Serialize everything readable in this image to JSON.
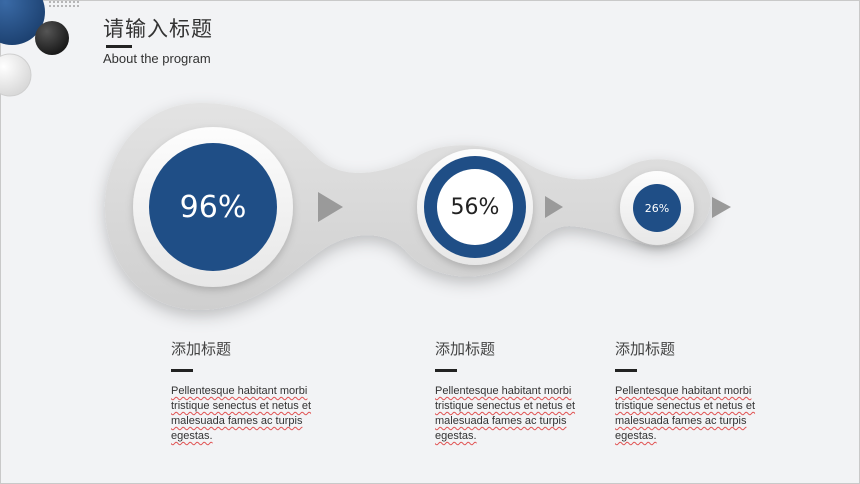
{
  "header": {
    "title": "请输入标题",
    "subtitle": "About the program"
  },
  "colors": {
    "accent": "#1f4e86",
    "dark": "#2b2b2b",
    "background": "#f2f3f5"
  },
  "stages": [
    {
      "percent": 96,
      "label": "96%"
    },
    {
      "percent": 56,
      "label": "56%"
    },
    {
      "percent": 26,
      "label": "26%"
    }
  ],
  "columns": [
    {
      "title": "添加标题",
      "text": "Pellentesque habitant morbi tristique senectus et netus et malesuada fames ac turpis egestas."
    },
    {
      "title": "添加标题",
      "text": "Pellentesque habitant morbi tristique senectus et netus et malesuada fames ac turpis egestas."
    },
    {
      "title": "添加标题",
      "text": "Pellentesque habitant morbi tristique senectus et netus et malesuada fames ac turpis egestas."
    }
  ]
}
